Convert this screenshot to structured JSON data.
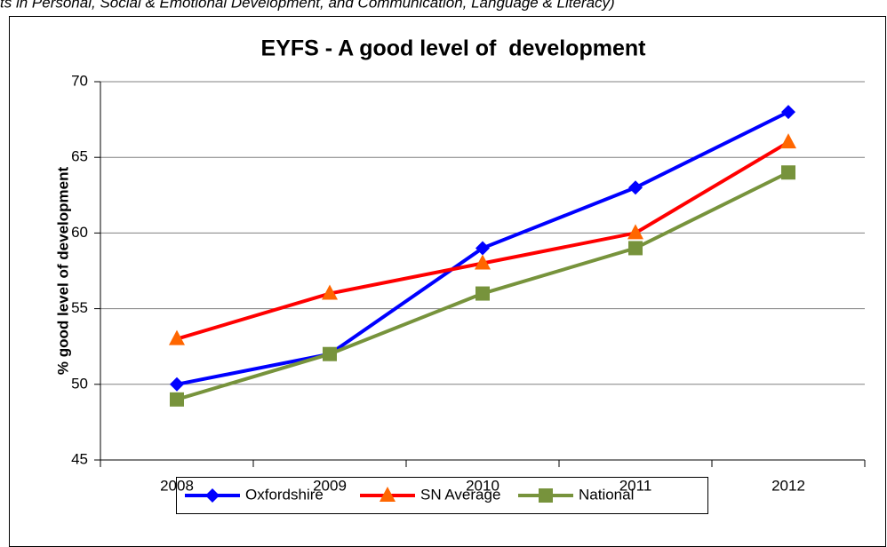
{
  "caption": "ts in Personal, Social & Emotional Development, and Communication, Language & Literacy)",
  "chart_data": {
    "type": "line",
    "title": "EYFS - A good level of  development",
    "y_label": "% good level of development",
    "categories": [
      "2008",
      "2009",
      "2010",
      "2011",
      "2012"
    ],
    "series": [
      {
        "name": "Oxfordshire",
        "color": "#0000ff",
        "marker": "diamond",
        "marker_color": "#0000ff",
        "values": [
          50,
          52,
          59,
          63,
          68
        ]
      },
      {
        "name": "SN Average",
        "color": "#ff0000",
        "marker": "triangle",
        "marker_color": "#ff6600",
        "values": [
          53,
          56,
          58,
          60,
          66
        ]
      },
      {
        "name": "National",
        "color": "#77933c",
        "marker": "square",
        "marker_color": "#77933c",
        "values": [
          49,
          52,
          56,
          59,
          64
        ]
      }
    ],
    "ylim": [
      45,
      70
    ],
    "yticks": [
      45,
      50,
      55,
      60,
      65,
      70
    ],
    "grid": true,
    "legend": "bottom"
  }
}
